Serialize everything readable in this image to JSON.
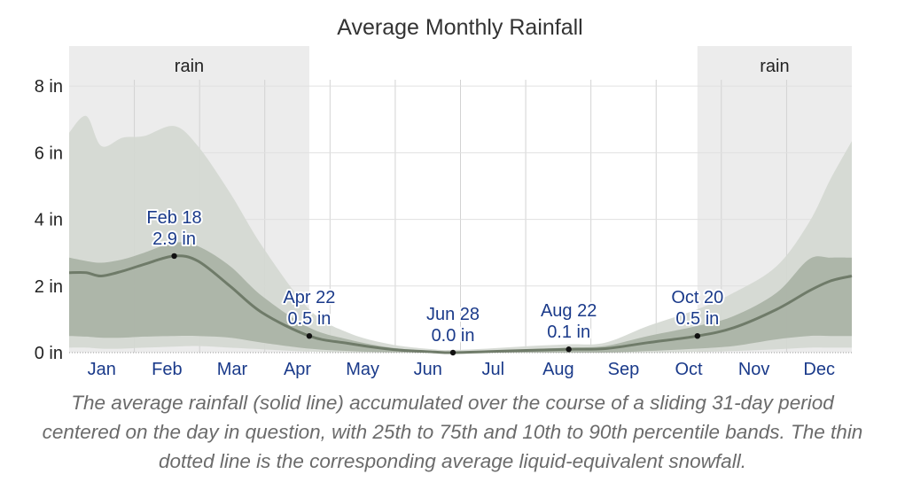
{
  "caption": "The average rainfall (solid line) accumulated over the course of a sliding 31-day period centered on the day in question, with 25th to 75th and 10th to 90th percentile bands. The thin dotted line is the corresponding average liquid-equivalent snowfall.",
  "chart_data": {
    "type": "area",
    "title": "Average Monthly Rainfall",
    "xlabel": "",
    "ylabel": "",
    "unit": "in",
    "ylim": [
      0,
      9.2
    ],
    "xlim": [
      0,
      365
    ],
    "y_ticks": [
      0,
      2,
      4,
      6,
      8
    ],
    "y_tick_labels": [
      "0 in",
      "2 in",
      "4 in",
      "6 in",
      "8 in"
    ],
    "grid": true,
    "month_labels": [
      "Jan",
      "Feb",
      "Mar",
      "Apr",
      "May",
      "Jun",
      "Jul",
      "Aug",
      "Sep",
      "Oct",
      "Nov",
      "Dec"
    ],
    "season_bands": [
      {
        "label": "rain",
        "start_day": 0,
        "end_day": 112
      },
      {
        "label": "rain",
        "start_day": 293,
        "end_day": 365
      }
    ],
    "colors": {
      "season_band": "#ececec",
      "band_10_90": "#d4d8d1",
      "band_25_75": "#a9b1a4",
      "mean_line": "#6f7b69",
      "annotation": "#1a3a8a"
    },
    "x": [
      0,
      8,
      15,
      25,
      35,
      49,
      60,
      75,
      90,
      112,
      130,
      150,
      170,
      179,
      195,
      215,
      233,
      250,
      270,
      293,
      310,
      330,
      345,
      355,
      365
    ],
    "series": [
      {
        "key": "mean",
        "values": [
          2.4,
          2.4,
          2.3,
          2.45,
          2.65,
          2.9,
          2.75,
          2.0,
          1.2,
          0.5,
          0.28,
          0.1,
          0.02,
          0.0,
          0.03,
          0.07,
          0.1,
          0.12,
          0.3,
          0.5,
          0.75,
          1.3,
          1.85,
          2.15,
          2.3
        ]
      },
      {
        "key": "p25",
        "values": [
          0.5,
          0.48,
          0.45,
          0.45,
          0.48,
          0.5,
          0.5,
          0.45,
          0.3,
          0.12,
          0.05,
          0.01,
          0.0,
          0.0,
          0.0,
          0.0,
          0.0,
          0.0,
          0.05,
          0.12,
          0.2,
          0.4,
          0.5,
          0.5,
          0.5
        ]
      },
      {
        "key": "p75",
        "values": [
          2.85,
          2.75,
          2.7,
          2.8,
          3.0,
          3.3,
          3.2,
          2.6,
          1.7,
          0.75,
          0.4,
          0.15,
          0.05,
          0.03,
          0.05,
          0.1,
          0.15,
          0.2,
          0.5,
          0.8,
          1.1,
          1.8,
          2.8,
          2.85,
          2.85
        ]
      },
      {
        "key": "p10",
        "values": [
          0.15,
          0.15,
          0.12,
          0.12,
          0.15,
          0.18,
          0.2,
          0.15,
          0.1,
          0.03,
          0.0,
          0.0,
          0.0,
          0.0,
          0.0,
          0.0,
          0.0,
          0.0,
          0.0,
          0.02,
          0.05,
          0.1,
          0.15,
          0.15,
          0.15
        ]
      },
      {
        "key": "p90",
        "values": [
          6.6,
          7.1,
          6.2,
          6.45,
          6.5,
          6.8,
          6.2,
          4.8,
          3.2,
          1.3,
          0.6,
          0.25,
          0.1,
          0.08,
          0.12,
          0.2,
          0.25,
          0.3,
          0.8,
          1.3,
          1.8,
          2.6,
          3.9,
          5.2,
          6.35
        ]
      }
    ],
    "annotations": [
      {
        "label": "Feb 18",
        "value_label": "2.9 in",
        "x": 49,
        "y": 2.9
      },
      {
        "label": "Apr 22",
        "value_label": "0.5 in",
        "x": 112,
        "y": 0.5
      },
      {
        "label": "Jun 28",
        "value_label": "0.0 in",
        "x": 179,
        "y": 0.0
      },
      {
        "label": "Aug 22",
        "value_label": "0.1 in",
        "x": 233,
        "y": 0.1
      },
      {
        "label": "Oct 20",
        "value_label": "0.5 in",
        "x": 293,
        "y": 0.5
      }
    ]
  }
}
